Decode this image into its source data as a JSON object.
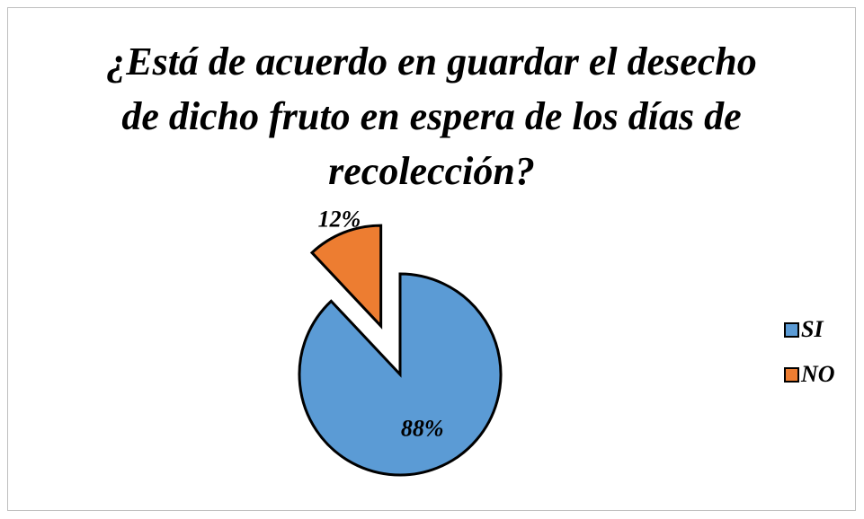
{
  "chart_data": {
    "type": "pie",
    "title": "¿Está de acuerdo en  guardar el desecho de dicho fruto en espera de los días de recolección?",
    "categories": [
      "SI",
      "NO"
    ],
    "values": [
      88,
      12
    ],
    "value_labels": [
      "88%",
      "12%"
    ],
    "colors": [
      "#5b9bd5",
      "#ed7d31"
    ],
    "legend": "right"
  }
}
